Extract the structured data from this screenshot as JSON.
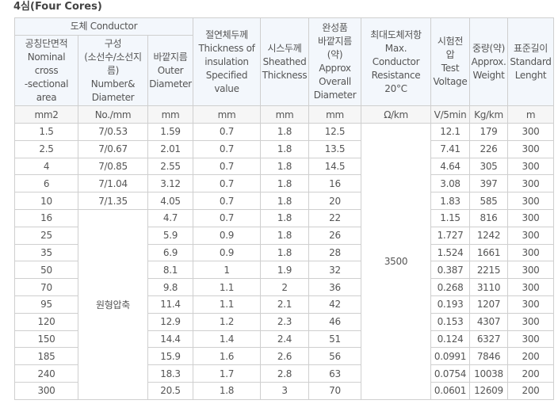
{
  "title": "4심(Four Cores)",
  "header": {
    "conductor": "도체 Conductor",
    "nominal": [
      "공칭단면적",
      "Nominal",
      "cross",
      "-sectional",
      "area"
    ],
    "construction": [
      "구성",
      "(소선수/소선지",
      "름)",
      "Number&",
      "Diameter"
    ],
    "outer": [
      "바깥지름",
      "Outer",
      "Diameter"
    ],
    "insulation": [
      "절연체두께",
      "Thickness of",
      "insulation",
      "Specified",
      "value"
    ],
    "sheath": [
      "시스두께",
      "Sheathed",
      "Thickness"
    ],
    "overall": [
      "완성품",
      "바깥지름",
      "(약)",
      "Approx",
      "Overall",
      "Diameter"
    ],
    "resistance": [
      "최대도체저항",
      "Max.",
      "Conductor",
      "Resistance",
      "20°C"
    ],
    "voltage": [
      "시험전",
      "압",
      "Test",
      "Voltage"
    ],
    "weight": [
      "중량(약)",
      "Approx.",
      "Weight"
    ],
    "length": [
      "표준길이",
      "Standard",
      "Lenght"
    ]
  },
  "units": [
    "mm2",
    "No./mm",
    "mm",
    "mm",
    "mm",
    "mm",
    "Ω/km",
    "V/5min",
    "Kg/km",
    "m"
  ],
  "merged": {
    "construction_compressed": "원형압축",
    "test_voltage_all": "3500"
  },
  "rows": [
    {
      "area": "1.5",
      "construction": "7/0.53",
      "outer": "1.59",
      "insulation": "0.7",
      "sheath": "1.8",
      "overall": "12.5",
      "resistance": "12.1",
      "weight": "179",
      "length": "300"
    },
    {
      "area": "2.5",
      "construction": "7/0.67",
      "outer": "2.01",
      "insulation": "0.7",
      "sheath": "1.8",
      "overall": "13.5",
      "resistance": "7.41",
      "weight": "226",
      "length": "300"
    },
    {
      "area": "4",
      "construction": "7/0.85",
      "outer": "2.55",
      "insulation": "0.7",
      "sheath": "1.8",
      "overall": "14.5",
      "resistance": "4.64",
      "weight": "305",
      "length": "300"
    },
    {
      "area": "6",
      "construction": "7/1.04",
      "outer": "3.12",
      "insulation": "0.7",
      "sheath": "1.8",
      "overall": "16",
      "resistance": "3.08",
      "weight": "397",
      "length": "300"
    },
    {
      "area": "10",
      "construction": "7/1.35",
      "outer": "4.05",
      "insulation": "0.7",
      "sheath": "1.8",
      "overall": "20",
      "resistance": "1.83",
      "weight": "585",
      "length": "300"
    },
    {
      "area": "16",
      "outer": "4.7",
      "insulation": "0.7",
      "sheath": "1.8",
      "overall": "22",
      "resistance": "1.15",
      "weight": "816",
      "length": "300"
    },
    {
      "area": "25",
      "outer": "5.9",
      "insulation": "0.9",
      "sheath": "1.8",
      "overall": "26",
      "resistance": "1.727",
      "weight": "1242",
      "length": "300"
    },
    {
      "area": "35",
      "outer": "6.9",
      "insulation": "0.9",
      "sheath": "1.8",
      "overall": "28",
      "resistance": "1.524",
      "weight": "1661",
      "length": "300"
    },
    {
      "area": "50",
      "outer": "8.1",
      "insulation": "1",
      "sheath": "1.9",
      "overall": "32",
      "resistance": "0.387",
      "weight": "2215",
      "length": "300"
    },
    {
      "area": "70",
      "outer": "9.8",
      "insulation": "1.1",
      "sheath": "2",
      "overall": "36",
      "resistance": "0.268",
      "weight": "3110",
      "length": "300"
    },
    {
      "area": "95",
      "outer": "11.4",
      "insulation": "1.1",
      "sheath": "2.1",
      "overall": "42",
      "resistance": "0.193",
      "weight": "1207",
      "length": "300"
    },
    {
      "area": "120",
      "outer": "12.9",
      "insulation": "1.2",
      "sheath": "2.3",
      "overall": "46",
      "resistance": "0.153",
      "weight": "4307",
      "length": "300"
    },
    {
      "area": "150",
      "outer": "14.4",
      "insulation": "1.4",
      "sheath": "2.4",
      "overall": "51",
      "resistance": "0.124",
      "weight": "6327",
      "length": "300"
    },
    {
      "area": "185",
      "outer": "15.9",
      "insulation": "1.6",
      "sheath": "2.6",
      "overall": "56",
      "resistance": "0.0991",
      "weight": "7846",
      "length": "200"
    },
    {
      "area": "240",
      "outer": "18.3",
      "insulation": "1.7",
      "sheath": "2.8",
      "overall": "63",
      "resistance": "0.0754",
      "weight": "10038",
      "length": "200"
    },
    {
      "area": "300",
      "outer": "20.5",
      "insulation": "1.8",
      "sheath": "3",
      "overall": "70",
      "resistance": "0.0601",
      "weight": "12609",
      "length": "200"
    }
  ]
}
